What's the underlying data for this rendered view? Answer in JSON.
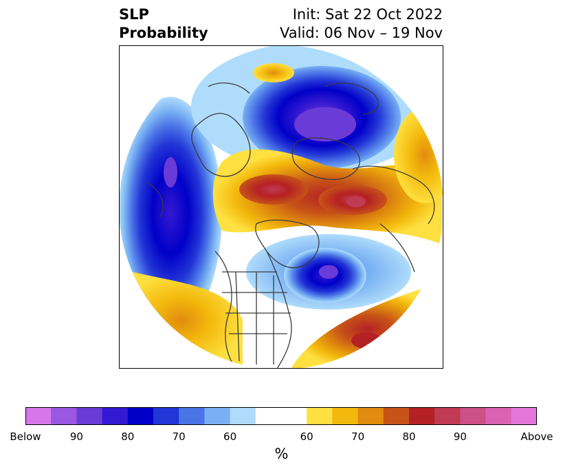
{
  "header": {
    "title_line1": "SLP",
    "title_line2": "Probability",
    "init": "Init: Sat 22 Oct 2022",
    "valid": "Valid: 06 Nov – 19 Nov"
  },
  "colorbar": {
    "colors_below": [
      "#d576eb",
      "#9b57e2",
      "#6a3bd7",
      "#3519d2",
      "#0000c8",
      "#2235d6",
      "#4a73e6",
      "#78b0f3",
      "#afdcfb"
    ],
    "neutral_color": "#ffffff",
    "colors_above": [
      "#fee040",
      "#f3b80c",
      "#e08c0e",
      "#c75318",
      "#b42124",
      "#c13a54",
      "#cc5186",
      "#db62b2",
      "#e476db"
    ],
    "tick_labels": [
      "Below",
      "90",
      "80",
      "70",
      "60",
      "60",
      "70",
      "80",
      "90",
      "Above"
    ],
    "unit_label": "%"
  }
}
